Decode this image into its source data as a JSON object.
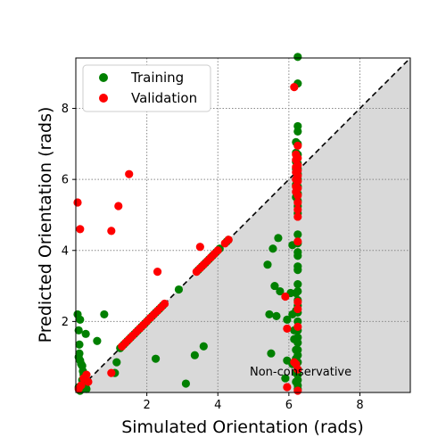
{
  "chart_data": {
    "type": "scatter",
    "title": "",
    "xlabel": "Simulated Orientation (rads)",
    "ylabel": "Predicted Orientation (rads)",
    "xlim": [
      0,
      9.42
    ],
    "ylim": [
      0,
      9.42
    ],
    "xticks": [
      2,
      4,
      6,
      8
    ],
    "yticks": [
      2,
      4,
      6,
      8
    ],
    "grid": true,
    "legend_position": "top-left",
    "shaded_region_label": "Non-conservative",
    "shaded_color": "#d9d9d9",
    "series": [
      {
        "name": "Training",
        "color": "#008000",
        "points": [
          [
            0.05,
            2.2
          ],
          [
            0.08,
            1.75
          ],
          [
            0.1,
            1.35
          ],
          [
            0.12,
            2.05
          ],
          [
            0.1,
            1.1
          ],
          [
            0.08,
            1.0
          ],
          [
            0.12,
            0.9
          ],
          [
            0.15,
            0.8
          ],
          [
            0.18,
            0.75
          ],
          [
            0.2,
            0.6
          ],
          [
            0.22,
            0.5
          ],
          [
            0.18,
            0.35
          ],
          [
            0.25,
            0.2
          ],
          [
            0.3,
            0.1
          ],
          [
            0.28,
            1.65
          ],
          [
            0.08,
            0.15
          ],
          [
            0.12,
            0.05
          ],
          [
            0.6,
            1.45
          ],
          [
            0.8,
            2.2
          ],
          [
            1.1,
            0.55
          ],
          [
            1.15,
            0.85
          ],
          [
            2.25,
            0.95
          ],
          [
            3.1,
            0.25
          ],
          [
            3.35,
            1.05
          ],
          [
            3.6,
            1.3
          ],
          [
            1.25,
            1.25
          ],
          [
            1.35,
            1.35
          ],
          [
            1.45,
            1.45
          ],
          [
            1.55,
            1.55
          ],
          [
            1.65,
            1.65
          ],
          [
            1.75,
            1.75
          ],
          [
            1.85,
            1.85
          ],
          [
            1.95,
            1.95
          ],
          [
            2.05,
            2.05
          ],
          [
            2.15,
            2.15
          ],
          [
            2.25,
            2.25
          ],
          [
            2.35,
            2.35
          ],
          [
            2.45,
            2.45
          ],
          [
            2.9,
            2.9
          ],
          [
            3.45,
            3.45
          ],
          [
            3.55,
            3.55
          ],
          [
            3.65,
            3.65
          ],
          [
            3.75,
            3.75
          ],
          [
            3.85,
            3.85
          ],
          [
            3.95,
            3.95
          ],
          [
            4.05,
            4.05
          ],
          [
            4.25,
            4.25
          ],
          [
            4.3,
            4.3
          ],
          [
            5.4,
            3.6
          ],
          [
            5.45,
            2.2
          ],
          [
            5.5,
            1.1
          ],
          [
            5.55,
            4.05
          ],
          [
            5.6,
            3.0
          ],
          [
            5.65,
            2.15
          ],
          [
            5.7,
            4.35
          ],
          [
            5.75,
            2.85
          ],
          [
            5.9,
            0.4
          ],
          [
            5.95,
            2.05
          ],
          [
            5.95,
            0.9
          ],
          [
            6.05,
            2.8
          ],
          [
            6.1,
            0.8
          ],
          [
            6.1,
            4.15
          ],
          [
            6.1,
            2.2
          ],
          [
            6.15,
            1.5
          ],
          [
            6.15,
            1.75
          ],
          [
            6.2,
            7.05
          ],
          [
            6.2,
            6.75
          ],
          [
            6.2,
            6.5
          ],
          [
            6.2,
            6.3
          ],
          [
            6.2,
            5.85
          ],
          [
            6.2,
            5.5
          ],
          [
            6.2,
            2.8
          ],
          [
            6.2,
            2.3
          ],
          [
            6.2,
            1.2
          ],
          [
            6.2,
            0.95
          ],
          [
            6.2,
            0.55
          ],
          [
            6.2,
            0.3
          ],
          [
            6.25,
            9.45
          ],
          [
            6.25,
            8.7
          ],
          [
            6.25,
            7.5
          ],
          [
            6.25,
            7.35
          ],
          [
            6.25,
            7.0
          ],
          [
            6.25,
            6.7
          ],
          [
            6.25,
            6.45
          ],
          [
            6.25,
            6.3
          ],
          [
            6.25,
            6.15
          ],
          [
            6.25,
            6.0
          ],
          [
            6.25,
            5.8
          ],
          [
            6.25,
            5.6
          ],
          [
            6.25,
            5.4
          ],
          [
            6.25,
            5.25
          ],
          [
            6.25,
            5.05
          ],
          [
            6.25,
            4.45
          ],
          [
            6.25,
            4.2
          ],
          [
            6.25,
            3.95
          ],
          [
            6.25,
            3.85
          ],
          [
            6.25,
            3.55
          ],
          [
            6.25,
            3.45
          ],
          [
            6.25,
            3.05
          ],
          [
            6.25,
            2.85
          ],
          [
            6.25,
            2.6
          ],
          [
            6.25,
            2.45
          ],
          [
            6.25,
            2.25
          ],
          [
            6.25,
            2.0
          ],
          [
            6.25,
            1.75
          ],
          [
            6.25,
            1.55
          ],
          [
            6.25,
            1.4
          ],
          [
            6.25,
            1.2
          ],
          [
            6.25,
            1.05
          ],
          [
            6.25,
            0.85
          ],
          [
            6.25,
            0.65
          ],
          [
            6.25,
            0.5
          ],
          [
            6.25,
            0.35
          ],
          [
            6.25,
            0.2
          ],
          [
            6.25,
            0.1
          ]
        ]
      },
      {
        "name": "Validation",
        "color": "#ff0000",
        "points": [
          [
            0.05,
            5.35
          ],
          [
            0.12,
            4.6
          ],
          [
            1.0,
            4.55
          ],
          [
            1.2,
            5.25
          ],
          [
            1.5,
            6.15
          ],
          [
            2.3,
            3.4
          ],
          [
            3.5,
            4.1
          ],
          [
            1.0,
            0.55
          ],
          [
            0.3,
            0.5
          ],
          [
            0.22,
            0.4
          ],
          [
            0.35,
            0.3
          ],
          [
            0.15,
            0.2
          ],
          [
            0.08,
            0.1
          ],
          [
            1.3,
            1.3
          ],
          [
            1.4,
            1.4
          ],
          [
            1.5,
            1.5
          ],
          [
            1.6,
            1.6
          ],
          [
            1.7,
            1.7
          ],
          [
            1.8,
            1.8
          ],
          [
            1.9,
            1.9
          ],
          [
            2.0,
            2.0
          ],
          [
            2.1,
            2.1
          ],
          [
            2.2,
            2.2
          ],
          [
            2.3,
            2.3
          ],
          [
            2.4,
            2.4
          ],
          [
            2.5,
            2.5
          ],
          [
            3.4,
            3.4
          ],
          [
            3.5,
            3.5
          ],
          [
            3.6,
            3.6
          ],
          [
            3.7,
            3.7
          ],
          [
            3.8,
            3.8
          ],
          [
            3.9,
            3.9
          ],
          [
            4.0,
            4.0
          ],
          [
            4.2,
            4.2
          ],
          [
            4.3,
            4.3
          ],
          [
            5.9,
            2.7
          ],
          [
            5.95,
            1.8
          ],
          [
            5.95,
            0.15
          ],
          [
            6.15,
            8.6
          ],
          [
            6.15,
            0.85
          ],
          [
            6.2,
            6.7
          ],
          [
            6.2,
            6.55
          ],
          [
            6.2,
            6.35
          ],
          [
            6.2,
            6.2
          ],
          [
            6.2,
            6.0
          ],
          [
            6.2,
            5.8
          ],
          [
            6.2,
            5.65
          ],
          [
            6.2,
            0.8
          ],
          [
            6.25,
            6.95
          ],
          [
            6.25,
            6.6
          ],
          [
            6.25,
            6.4
          ],
          [
            6.25,
            6.25
          ],
          [
            6.25,
            6.1
          ],
          [
            6.25,
            5.95
          ],
          [
            6.25,
            5.75
          ],
          [
            6.25,
            5.55
          ],
          [
            6.25,
            5.35
          ],
          [
            6.25,
            5.15
          ],
          [
            6.25,
            4.95
          ],
          [
            6.25,
            4.25
          ],
          [
            6.25,
            2.55
          ],
          [
            6.25,
            2.35
          ],
          [
            6.25,
            1.85
          ],
          [
            6.25,
            0.65
          ],
          [
            6.25,
            0.05
          ]
        ]
      }
    ]
  }
}
